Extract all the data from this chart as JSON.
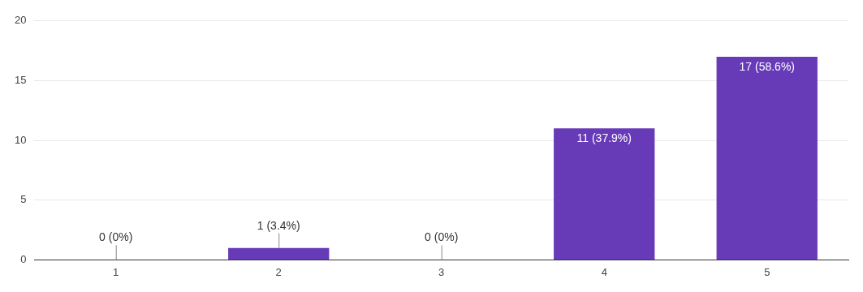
{
  "chart_data": {
    "type": "bar",
    "categories": [
      "1",
      "2",
      "3",
      "4",
      "5"
    ],
    "values": [
      0,
      1,
      0,
      11,
      17
    ],
    "value_labels": [
      "0 (0%)",
      "1 (3.4%)",
      "0 (0%)",
      "11 (37.9%)",
      "17 (58.6%)"
    ],
    "color": "#673ab7",
    "ylim": [
      0,
      20
    ],
    "yticks": [
      0,
      5,
      10,
      15,
      20
    ],
    "grid": "y",
    "legend": false
  }
}
